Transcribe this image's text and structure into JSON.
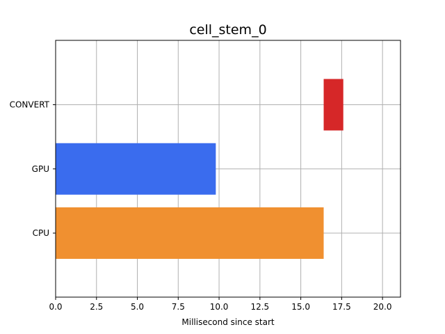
{
  "chart_data": {
    "type": "bar",
    "orientation": "horizontal",
    "title": "cell_stem_0",
    "xlabel": "Millisecond since start",
    "ylabel": "",
    "xlim": [
      0,
      21.1
    ],
    "grid": true,
    "xticks": [
      0,
      2.5,
      5,
      7.5,
      10,
      12.5,
      15,
      17.5,
      20
    ],
    "xtick_labels": [
      "0.0",
      "2.5",
      "5.0",
      "7.5",
      "10.0",
      "12.5",
      "15.0",
      "17.5",
      "20.0"
    ],
    "categories": [
      "CPU",
      "GPU",
      "CONVERT"
    ],
    "bars": [
      {
        "category": "CPU",
        "start": 0,
        "end": 16.4,
        "color": "#f09030"
      },
      {
        "category": "GPU",
        "start": 0,
        "end": 9.8,
        "color": "#3a6cee"
      },
      {
        "category": "CONVERT",
        "start": 16.4,
        "end": 17.6,
        "color": "#d62728"
      }
    ]
  }
}
